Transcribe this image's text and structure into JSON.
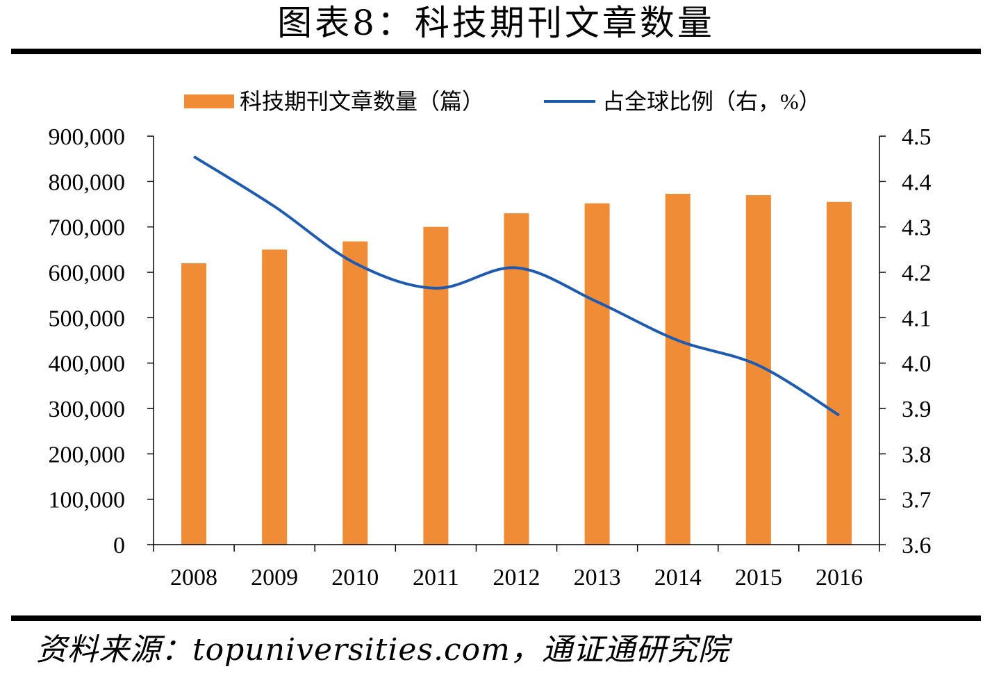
{
  "figure_title": "图表8：科技期刊文章数量",
  "source": "资料来源：topuniversities.com，通证通研究院",
  "chart_data": {
    "type": "bar",
    "categories": [
      "2008",
      "2009",
      "2010",
      "2011",
      "2012",
      "2013",
      "2014",
      "2015",
      "2016"
    ],
    "series": [
      {
        "name": "科技期刊文章数量（篇）",
        "type": "bar",
        "axis": "left",
        "color": "#F08C35",
        "values": [
          620000,
          650000,
          668000,
          700000,
          730000,
          752000,
          773000,
          770000,
          755000
        ]
      },
      {
        "name": "占全球比例（右，%）",
        "type": "line",
        "axis": "right",
        "color": "#1E5BB0",
        "values": [
          4.455,
          4.345,
          4.22,
          4.165,
          4.21,
          4.135,
          4.05,
          3.995,
          3.885
        ]
      }
    ],
    "y_left": {
      "lim": [
        0,
        900000
      ],
      "ticks": [
        0,
        100000,
        200000,
        300000,
        400000,
        500000,
        600000,
        700000,
        800000,
        900000
      ],
      "tick_labels": [
        "0",
        "100,000",
        "200,000",
        "300,000",
        "400,000",
        "500,000",
        "600,000",
        "700,000",
        "800,000",
        "900,000"
      ]
    },
    "y_right": {
      "lim": [
        3.6,
        4.5
      ],
      "ticks": [
        3.6,
        3.7,
        3.8,
        3.9,
        4.0,
        4.1,
        4.2,
        4.3,
        4.4,
        4.5
      ],
      "tick_labels": [
        "3.6",
        "3.7",
        "3.8",
        "3.9",
        "4.0",
        "4.1",
        "4.2",
        "4.3",
        "4.4",
        "4.5"
      ]
    },
    "grid": false,
    "legend": "top"
  }
}
